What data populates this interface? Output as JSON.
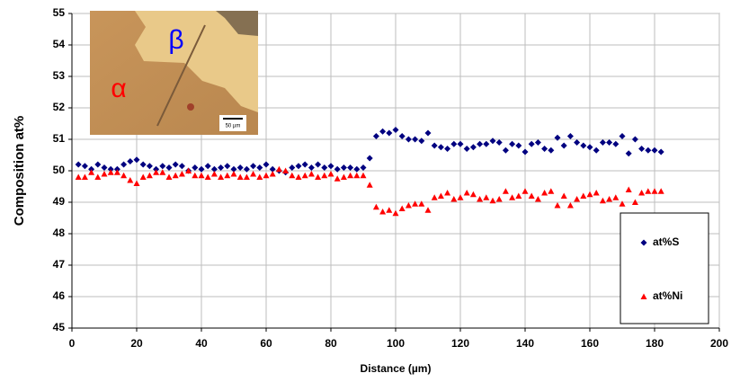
{
  "chart_data": {
    "type": "scatter",
    "x_label": "Distance (µm)",
    "y_label": "Composition at%",
    "xlim": [
      0,
      200
    ],
    "xticks": [
      0,
      20,
      40,
      60,
      80,
      100,
      120,
      140,
      160,
      180,
      200
    ],
    "ylim": [
      45,
      55
    ],
    "yticks": [
      45,
      46,
      47,
      48,
      49,
      50,
      51,
      52,
      53,
      54,
      55
    ],
    "grid": true,
    "legend": "lower right",
    "x": [
      2,
      4,
      6,
      8,
      10,
      12,
      14,
      16,
      18,
      20,
      22,
      24,
      26,
      28,
      30,
      32,
      34,
      36,
      38,
      40,
      42,
      44,
      46,
      48,
      50,
      52,
      54,
      56,
      58,
      60,
      62,
      64,
      66,
      68,
      70,
      72,
      74,
      76,
      78,
      80,
      82,
      84,
      86,
      88,
      90,
      92,
      94,
      96,
      98,
      100,
      102,
      104,
      106,
      108,
      110,
      112,
      114,
      116,
      118,
      120,
      122,
      124,
      126,
      128,
      130,
      132,
      134,
      136,
      138,
      140,
      142,
      144,
      146,
      148,
      150,
      152,
      154,
      156,
      158,
      160,
      162,
      164,
      166,
      168,
      170,
      172,
      174,
      176,
      178,
      180,
      182
    ],
    "series": [
      {
        "name": "at%S",
        "color": "#000080",
        "marker": "diamond",
        "values": [
          50.2,
          50.15,
          50.05,
          50.2,
          50.1,
          50.05,
          50.05,
          50.2,
          50.3,
          50.35,
          50.2,
          50.15,
          50.05,
          50.15,
          50.1,
          50.2,
          50.15,
          50.0,
          50.1,
          50.05,
          50.15,
          50.05,
          50.1,
          50.15,
          50.05,
          50.1,
          50.05,
          50.15,
          50.1,
          50.2,
          50.05,
          50.0,
          49.95,
          50.1,
          50.15,
          50.2,
          50.1,
          50.2,
          50.1,
          50.15,
          50.05,
          50.1,
          50.1,
          50.05,
          50.1,
          50.4,
          51.1,
          51.25,
          51.2,
          51.3,
          51.1,
          51.0,
          51.0,
          50.95,
          51.2,
          50.8,
          50.75,
          50.7,
          50.85,
          50.85,
          50.7,
          50.75,
          50.85,
          50.85,
          50.95,
          50.9,
          50.65,
          50.85,
          50.8,
          50.6,
          50.85,
          50.9,
          50.7,
          50.65,
          51.05,
          50.8,
          51.1,
          50.9,
          50.8,
          50.75,
          50.65,
          50.9,
          50.9,
          50.85,
          51.1,
          50.55,
          51.0,
          50.7,
          50.65,
          50.65,
          50.6
        ]
      },
      {
        "name": "at%Ni",
        "color": "#ff0000",
        "marker": "triangle",
        "values": [
          49.8,
          49.8,
          49.95,
          49.8,
          49.9,
          49.95,
          49.95,
          49.85,
          49.7,
          49.6,
          49.8,
          49.85,
          49.95,
          49.95,
          49.8,
          49.85,
          49.9,
          50.0,
          49.85,
          49.85,
          49.8,
          49.9,
          49.8,
          49.85,
          49.9,
          49.8,
          49.8,
          49.9,
          49.8,
          49.85,
          49.9,
          50.05,
          50.0,
          49.85,
          49.8,
          49.85,
          49.9,
          49.8,
          49.85,
          49.9,
          49.75,
          49.8,
          49.85,
          49.85,
          49.85,
          49.55,
          48.85,
          48.7,
          48.75,
          48.65,
          48.8,
          48.9,
          48.95,
          48.95,
          48.75,
          49.15,
          49.2,
          49.3,
          49.1,
          49.15,
          49.3,
          49.25,
          49.1,
          49.15,
          49.05,
          49.1,
          49.35,
          49.15,
          49.2,
          49.35,
          49.2,
          49.1,
          49.3,
          49.35,
          48.9,
          49.2,
          48.9,
          49.1,
          49.2,
          49.25,
          49.3,
          49.05,
          49.1,
          49.15,
          48.95,
          49.4,
          49.0,
          49.3,
          49.35,
          49.35,
          49.35
        ]
      }
    ],
    "inset": {
      "alpha_label": "α",
      "beta_label": "β",
      "scale_label": "50 µm"
    }
  }
}
